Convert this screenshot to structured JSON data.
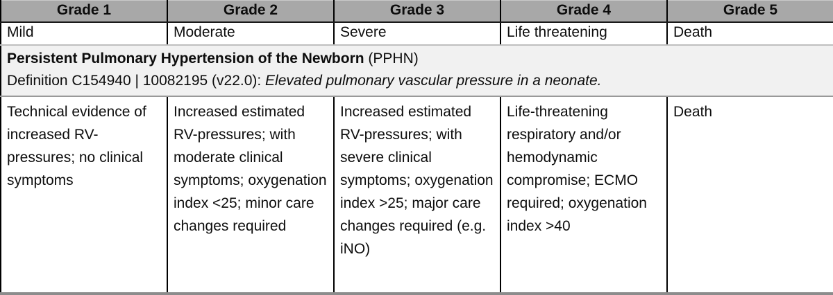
{
  "table": {
    "grades": [
      {
        "label": "Grade 1",
        "severity": "Mild",
        "criteria": "Technical evidence of increased RV-pressures; no clinical symptoms"
      },
      {
        "label": "Grade 2",
        "severity": "Moderate",
        "criteria": "Increased estimated RV-pressures; with moderate clinical symptoms; oxygenation index <25; minor care changes required"
      },
      {
        "label": "Grade 3",
        "severity": "Severe",
        "criteria": "Increased estimated RV-pressures; with severe clinical symptoms; oxygenation index >25; major care changes required (e.g. iNO)"
      },
      {
        "label": "Grade 4",
        "severity": "Life threatening",
        "criteria": "Life-threatening respiratory and/or hemodynamic compromise; ECMO required; oxygenation index >40"
      },
      {
        "label": "Grade 5",
        "severity": "Death",
        "criteria": "Death"
      }
    ],
    "condition": {
      "name_bold": "Persistent Pulmonary Hypertension of the Newborn",
      "name_suffix": " (PPHN)",
      "definition_prefix": "Definition C154940 | 10082195 (v22.0): ",
      "definition_italic": "Elevated pulmonary vascular pressure in a neonate."
    },
    "colors": {
      "header_bg": "#a8a8a8",
      "definition_bg": "#f1f1f1",
      "bottom_border": "#8c8c8c"
    }
  }
}
